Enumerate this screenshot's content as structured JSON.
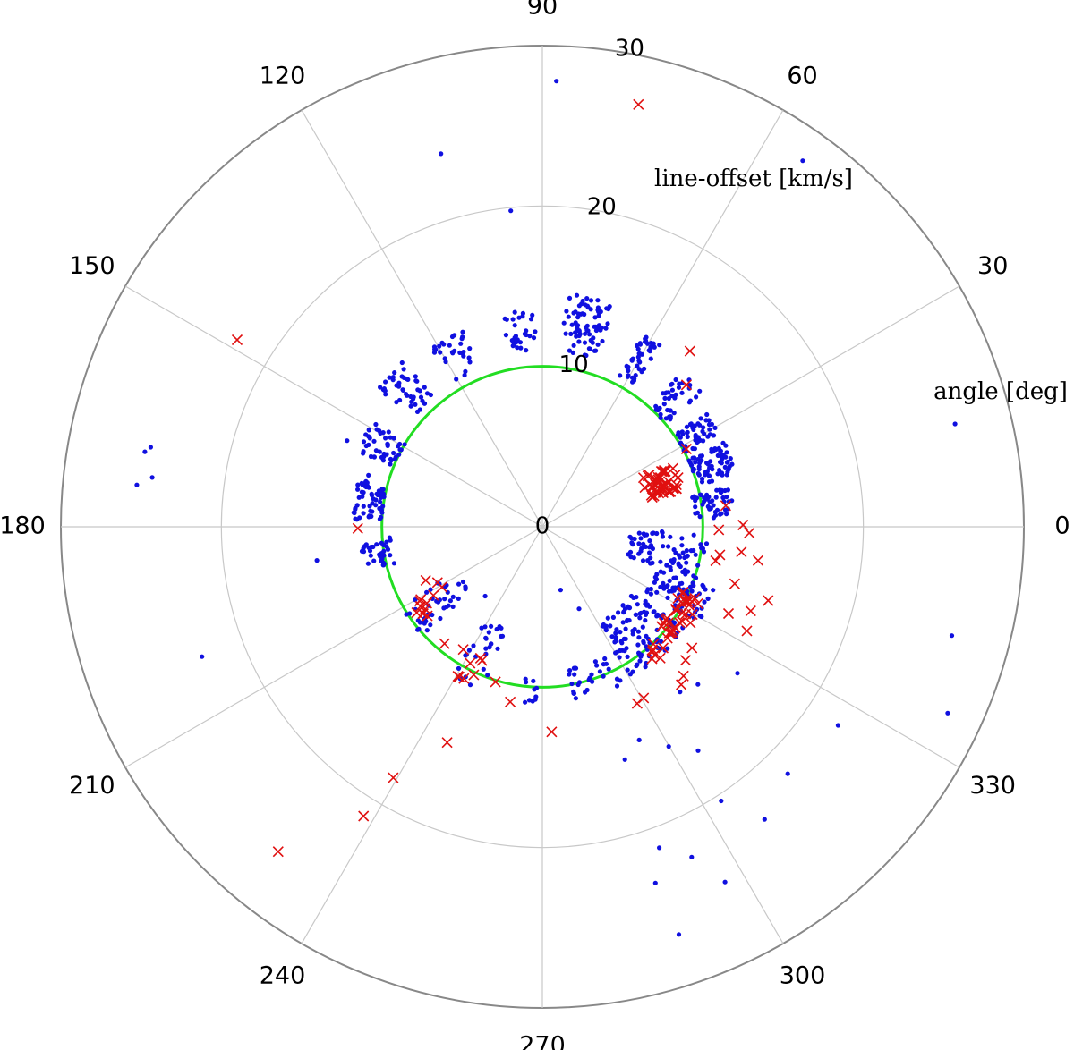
{
  "chart_data": {
    "type": "scatter",
    "coordinate_system": "polar",
    "radial_axis": {
      "label": "line-offset [km/s]",
      "range": [
        0,
        30
      ],
      "ticks": [
        0,
        10,
        20,
        30
      ],
      "tick_labels": [
        "0",
        "10",
        "20",
        "30"
      ]
    },
    "angular_axis": {
      "label": "angle [deg]",
      "ticks": [
        0,
        30,
        60,
        90,
        120,
        150,
        180,
        210,
        240,
        270,
        300,
        330
      ],
      "tick_labels": [
        "0",
        "30",
        "60",
        "90",
        "120",
        "150",
        "180",
        "210",
        "240",
        "270",
        "300",
        "330"
      ]
    },
    "grid": true,
    "circle": {
      "r": 10,
      "color": "#22dd22"
    },
    "colors": {
      "blue_points": "#1010e0",
      "red_crosses": "#e01010",
      "grid": "#c8c8c8",
      "outer": "#888888"
    },
    "series": [
      {
        "marker": "dot",
        "color": "#1010e0",
        "points": [
          [
            88.2,
            27.8
          ],
          [
            54.6,
            28.0
          ],
          [
            105.2,
            24.1
          ],
          [
            95.7,
            19.8
          ],
          [
            14.0,
            26.5
          ],
          [
            169.3,
            25.2
          ],
          [
            172.8,
            24.5
          ],
          [
            168.5,
            24.9
          ],
          [
            174.1,
            25.4
          ],
          [
            188.5,
            14.2
          ],
          [
            200.9,
            22.7
          ],
          [
            335.3,
            27.8
          ],
          [
            345.1,
            26.4
          ],
          [
            326.1,
            22.2
          ],
          [
            294.3,
            22.6
          ],
          [
            303.1,
            20.4
          ],
          [
            290.0,
            21.3
          ],
          [
            307.2,
            22.9
          ],
          [
            297.2,
            24.9
          ],
          [
            287.6,
            23.3
          ],
          [
            288.5,
            26.8
          ],
          [
            314.8,
            21.7
          ],
          [
            299.9,
            15.8
          ],
          [
            289.5,
            15.4
          ],
          [
            294.4,
            14.6
          ],
          [
            304.8,
            17.0
          ],
          [
            309.8,
            13.4
          ],
          [
            314.6,
            13.8
          ],
          [
            323.1,
            15.2
          ],
          [
            286.1,
            4.1
          ],
          [
            294.1,
            5.6
          ],
          [
            302.0,
            7.2
          ],
          [
            156.2,
            13.3
          ],
          [
            163.5,
            11.3
          ],
          [
            230.5,
            5.6
          ]
        ],
        "clusters": [
          {
            "a": [
              91,
              101
            ],
            "r": [
              11.0,
              13.5
            ],
            "n": 30
          },
          {
            "a": [
              72,
              84
            ],
            "r": [
              11.0,
              14.6
            ],
            "n": 75
          },
          {
            "a": [
              57,
              63
            ],
            "r": [
              10.5,
              13.5
            ],
            "n": 45
          },
          {
            "a": [
              40,
              48
            ],
            "r": [
              10.0,
              13.0
            ],
            "n": 40
          },
          {
            "a": [
              27,
              35
            ],
            "r": [
              10.0,
              12.5
            ],
            "n": 50
          },
          {
            "a": [
              15,
              25
            ],
            "r": [
              10.0,
              12.5
            ],
            "n": 70
          },
          {
            "a": [
              3,
              12
            ],
            "r": [
              9.5,
              12.0
            ],
            "n": 45
          },
          {
            "a": [
              341,
              358
            ],
            "r": [
              5.5,
              10.5
            ],
            "n": 80
          },
          {
            "a": [
              328,
              340
            ],
            "r": [
              7.5,
              11.5
            ],
            "n": 70
          },
          {
            "a": [
              300,
              325
            ],
            "r": [
              7.0,
              11.0
            ],
            "n": 110
          },
          {
            "a": [
              280,
              298
            ],
            "r": [
              9.0,
              11.0
            ],
            "n": 30
          },
          {
            "a": [
              263,
              268
            ],
            "r": [
              9.5,
              11.0
            ],
            "n": 10
          },
          {
            "a": [
              238,
              250
            ],
            "r": [
              6.5,
              11.0
            ],
            "n": 28
          },
          {
            "a": [
              208,
              222
            ],
            "r": [
              6.0,
              10.5
            ],
            "n": 45
          },
          {
            "a": [
              184,
              194
            ],
            "r": [
              9.5,
              11.5
            ],
            "n": 35
          },
          {
            "a": [
              165,
              178
            ],
            "r": [
              10.0,
              11.8
            ],
            "n": 55
          },
          {
            "a": [
              148,
              158
            ],
            "r": [
              10.0,
              12.5
            ],
            "n": 45
          },
          {
            "a": [
              130,
              140
            ],
            "r": [
              10.5,
              13.5
            ],
            "n": 45
          },
          {
            "a": [
              112,
              122
            ],
            "r": [
              10.5,
              13.5
            ],
            "n": 30
          }
        ]
      },
      {
        "marker": "x",
        "color": "#e01010",
        "points": [
          [
            77.2,
            27.0
          ],
          [
            50.0,
            14.3
          ],
          [
            44.6,
            12.6
          ],
          [
            28.4,
            10.2
          ],
          [
            148.5,
            22.3
          ],
          [
            180.5,
            11.5
          ],
          [
            6.6,
            11.5
          ],
          [
            359.0,
            11.0
          ],
          [
            0.5,
            12.5
          ],
          [
            358.3,
            12.9
          ],
          [
            351.0,
            11.2
          ],
          [
            348.9,
            11.0
          ],
          [
            352.8,
            12.5
          ],
          [
            351.1,
            13.6
          ],
          [
            343.5,
            12.5
          ],
          [
            341.9,
            14.8
          ],
          [
            335.0,
            12.8
          ],
          [
            338.0,
            14.0
          ],
          [
            333.0,
            14.3
          ],
          [
            327.0,
            11.0
          ],
          [
            321.0,
            12.0
          ],
          [
            317.0,
            12.2
          ],
          [
            311.9,
            11.0
          ],
          [
            313.4,
            12.8
          ],
          [
            311.3,
            13.1
          ],
          [
            300.6,
            12.4
          ],
          [
            298.2,
            12.5
          ],
          [
            272.6,
            12.8
          ],
          [
            259.6,
            11.1
          ],
          [
            246.2,
            14.7
          ],
          [
            239.3,
            18.2
          ],
          [
            238.3,
            21.2
          ],
          [
            230.9,
            26.1
          ],
          [
            241.0,
            10.7
          ],
          [
            253.2,
            10.1
          ],
          [
            237.2,
            9.1
          ],
          [
            230.1,
            9.5
          ],
          [
            204.7,
            8.0
          ],
          [
            208.0,
            7.4
          ],
          [
            211.0,
            7.3
          ]
        ],
        "clusters": [
          {
            "a": [
              15,
              26
            ],
            "r": [
              6.8,
              9.0
            ],
            "n": 45
          },
          {
            "a": [
              318,
              337
            ],
            "r": [
              9.5,
              11.0
            ],
            "n": 30
          },
          {
            "a": [
              309,
              315
            ],
            "r": [
              10.0,
              10.8
            ],
            "n": 6
          },
          {
            "a": [
              240,
              246
            ],
            "r": [
              9.0,
              11.0
            ],
            "n": 6
          },
          {
            "a": [
              210,
              218
            ],
            "r": [
              7.5,
              9.5
            ],
            "n": 10
          }
        ]
      }
    ]
  }
}
